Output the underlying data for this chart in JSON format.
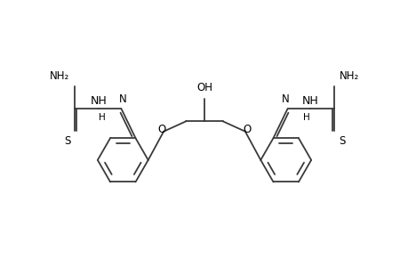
{
  "bg_color": "#ffffff",
  "line_color": "#3a3a3a",
  "text_color": "#000000",
  "line_width": 1.3,
  "font_size": 8.5,
  "fig_width": 4.6,
  "fig_height": 3.0,
  "dpi": 100,
  "xlim": [
    0,
    10
  ],
  "ylim": [
    0,
    6.5
  ]
}
